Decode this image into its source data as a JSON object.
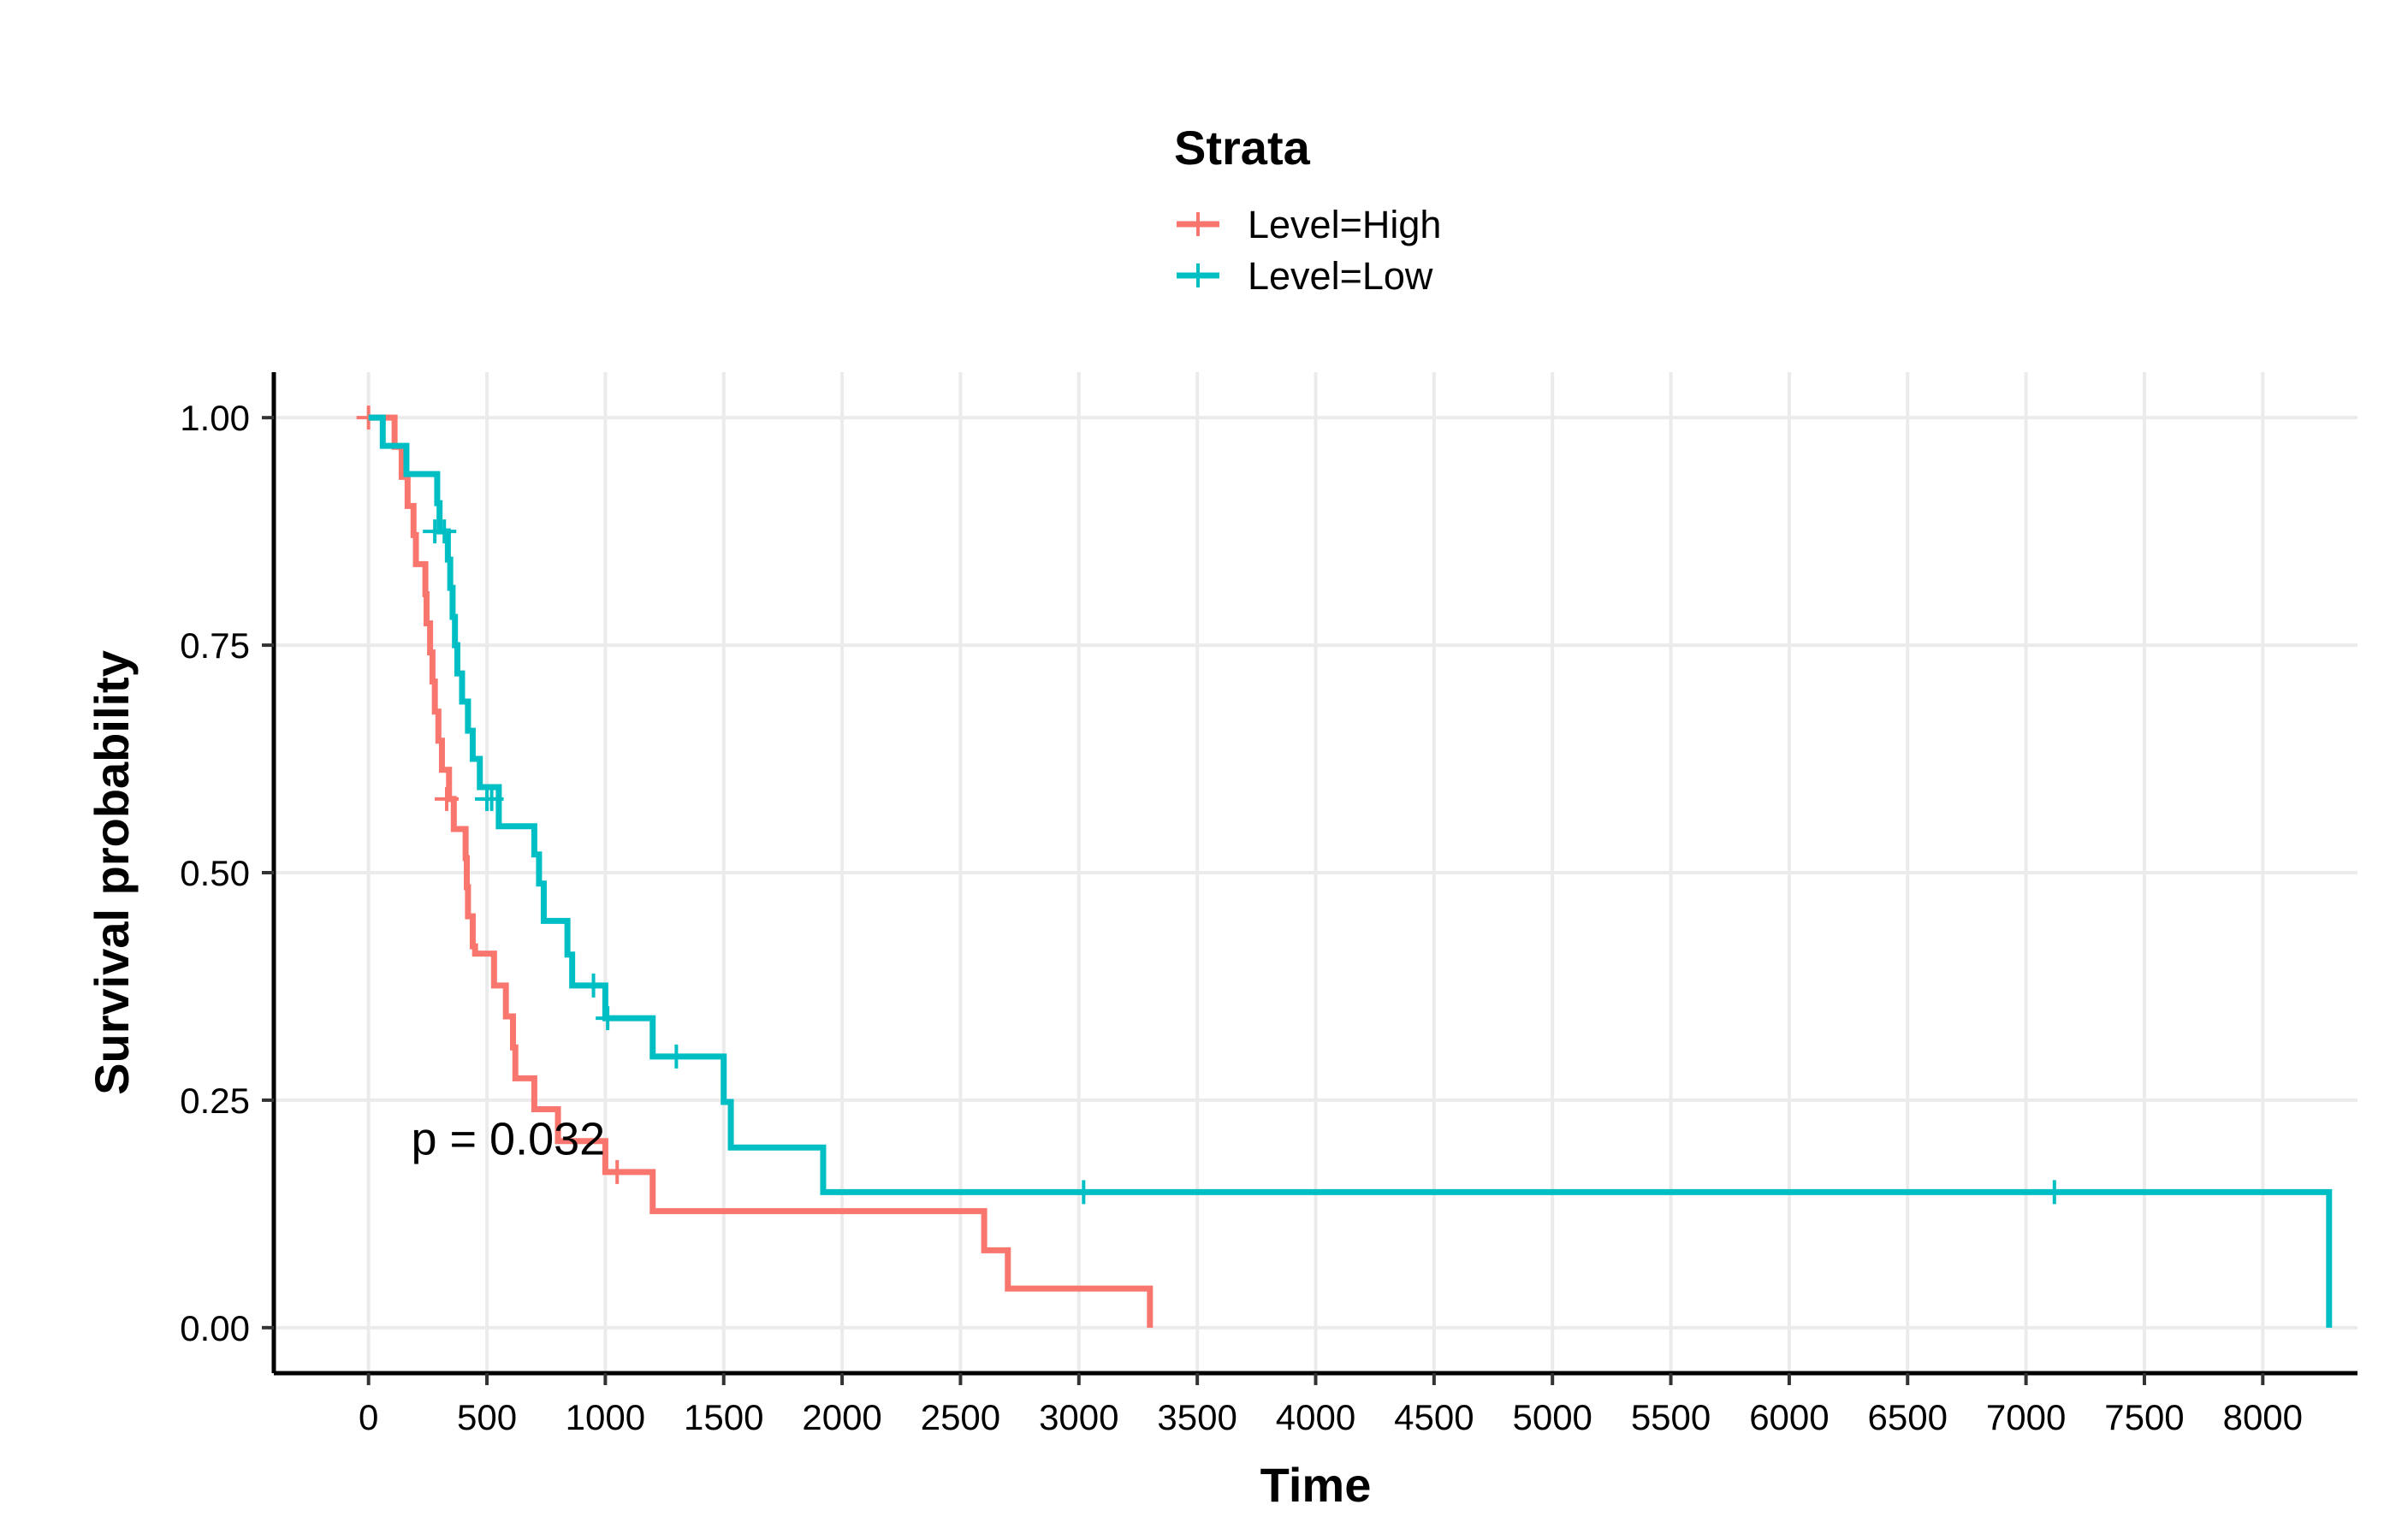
{
  "chart_data": {
    "type": "line",
    "subtype": "kaplan-meier-step",
    "title": "",
    "xlabel": "Time",
    "ylabel": "Survival probability",
    "xlim": [
      -400,
      8400
    ],
    "ylim": [
      -0.05,
      1.05
    ],
    "x_ticks": [
      0,
      500,
      1000,
      1500,
      2000,
      2500,
      3000,
      3500,
      4000,
      4500,
      5000,
      5500,
      6000,
      6500,
      7000,
      7500,
      8000
    ],
    "y_ticks": [
      0.0,
      0.25,
      0.5,
      0.75,
      1.0
    ],
    "y_tick_labels": [
      "0.00",
      "0.25",
      "0.50",
      "0.75",
      "1.00"
    ],
    "grid": true,
    "legend": {
      "title": "Strata",
      "position": "top",
      "entries": [
        "Level=High",
        "Level=Low"
      ]
    },
    "annotation": {
      "text": "p = 0.032",
      "x": 180,
      "y": 0.19
    },
    "series": [
      {
        "name": "Level=High",
        "color": "#F8766D",
        "steps": [
          [
            0,
            1.0
          ],
          [
            110,
            0.968
          ],
          [
            140,
            0.935
          ],
          [
            165,
            0.903
          ],
          [
            190,
            0.871
          ],
          [
            200,
            0.839
          ],
          [
            240,
            0.806
          ],
          [
            245,
            0.774
          ],
          [
            260,
            0.742
          ],
          [
            270,
            0.71
          ],
          [
            280,
            0.677
          ],
          [
            295,
            0.645
          ],
          [
            310,
            0.613
          ],
          [
            340,
            0.581
          ],
          [
            360,
            0.548
          ],
          [
            410,
            0.516
          ],
          [
            415,
            0.484
          ],
          [
            420,
            0.452
          ],
          [
            440,
            0.419
          ],
          [
            450,
            0.411
          ],
          [
            530,
            0.376
          ],
          [
            580,
            0.342
          ],
          [
            610,
            0.308
          ],
          [
            620,
            0.274
          ],
          [
            700,
            0.24
          ],
          [
            800,
            0.205
          ],
          [
            1000,
            0.171
          ],
          [
            1200,
            0.128
          ],
          [
            2600,
            0.085
          ],
          [
            2700,
            0.043
          ],
          [
            3300,
            0.0
          ]
        ],
        "end_x": 3300,
        "censored": [
          [
            0,
            1.0
          ],
          [
            330,
            0.581
          ],
          [
            1050,
            0.171
          ]
        ]
      },
      {
        "name": "Level=Low",
        "color": "#00BFC4",
        "steps": [
          [
            0,
            1.0
          ],
          [
            60,
            0.969
          ],
          [
            160,
            0.938
          ],
          [
            290,
            0.906
          ],
          [
            300,
            0.875
          ],
          [
            335,
            0.844
          ],
          [
            345,
            0.813
          ],
          [
            355,
            0.781
          ],
          [
            365,
            0.75
          ],
          [
            375,
            0.719
          ],
          [
            395,
            0.688
          ],
          [
            420,
            0.656
          ],
          [
            440,
            0.625
          ],
          [
            470,
            0.594
          ],
          [
            550,
            0.551
          ],
          [
            700,
            0.52
          ],
          [
            720,
            0.488
          ],
          [
            740,
            0.447
          ],
          [
            840,
            0.41
          ],
          [
            860,
            0.376
          ],
          [
            1000,
            0.34
          ],
          [
            1200,
            0.298
          ],
          [
            1500,
            0.248
          ],
          [
            1530,
            0.198
          ],
          [
            1920,
            0.149
          ],
          [
            8280,
            0.0
          ]
        ],
        "end_x": 8280,
        "censored": [
          [
            280,
            0.875
          ],
          [
            320,
            0.875
          ],
          [
            500,
            0.581
          ],
          [
            520,
            0.581
          ],
          [
            950,
            0.376
          ],
          [
            1010,
            0.34
          ],
          [
            1300,
            0.298
          ],
          [
            3020,
            0.149
          ],
          [
            7120,
            0.149
          ]
        ]
      }
    ]
  }
}
